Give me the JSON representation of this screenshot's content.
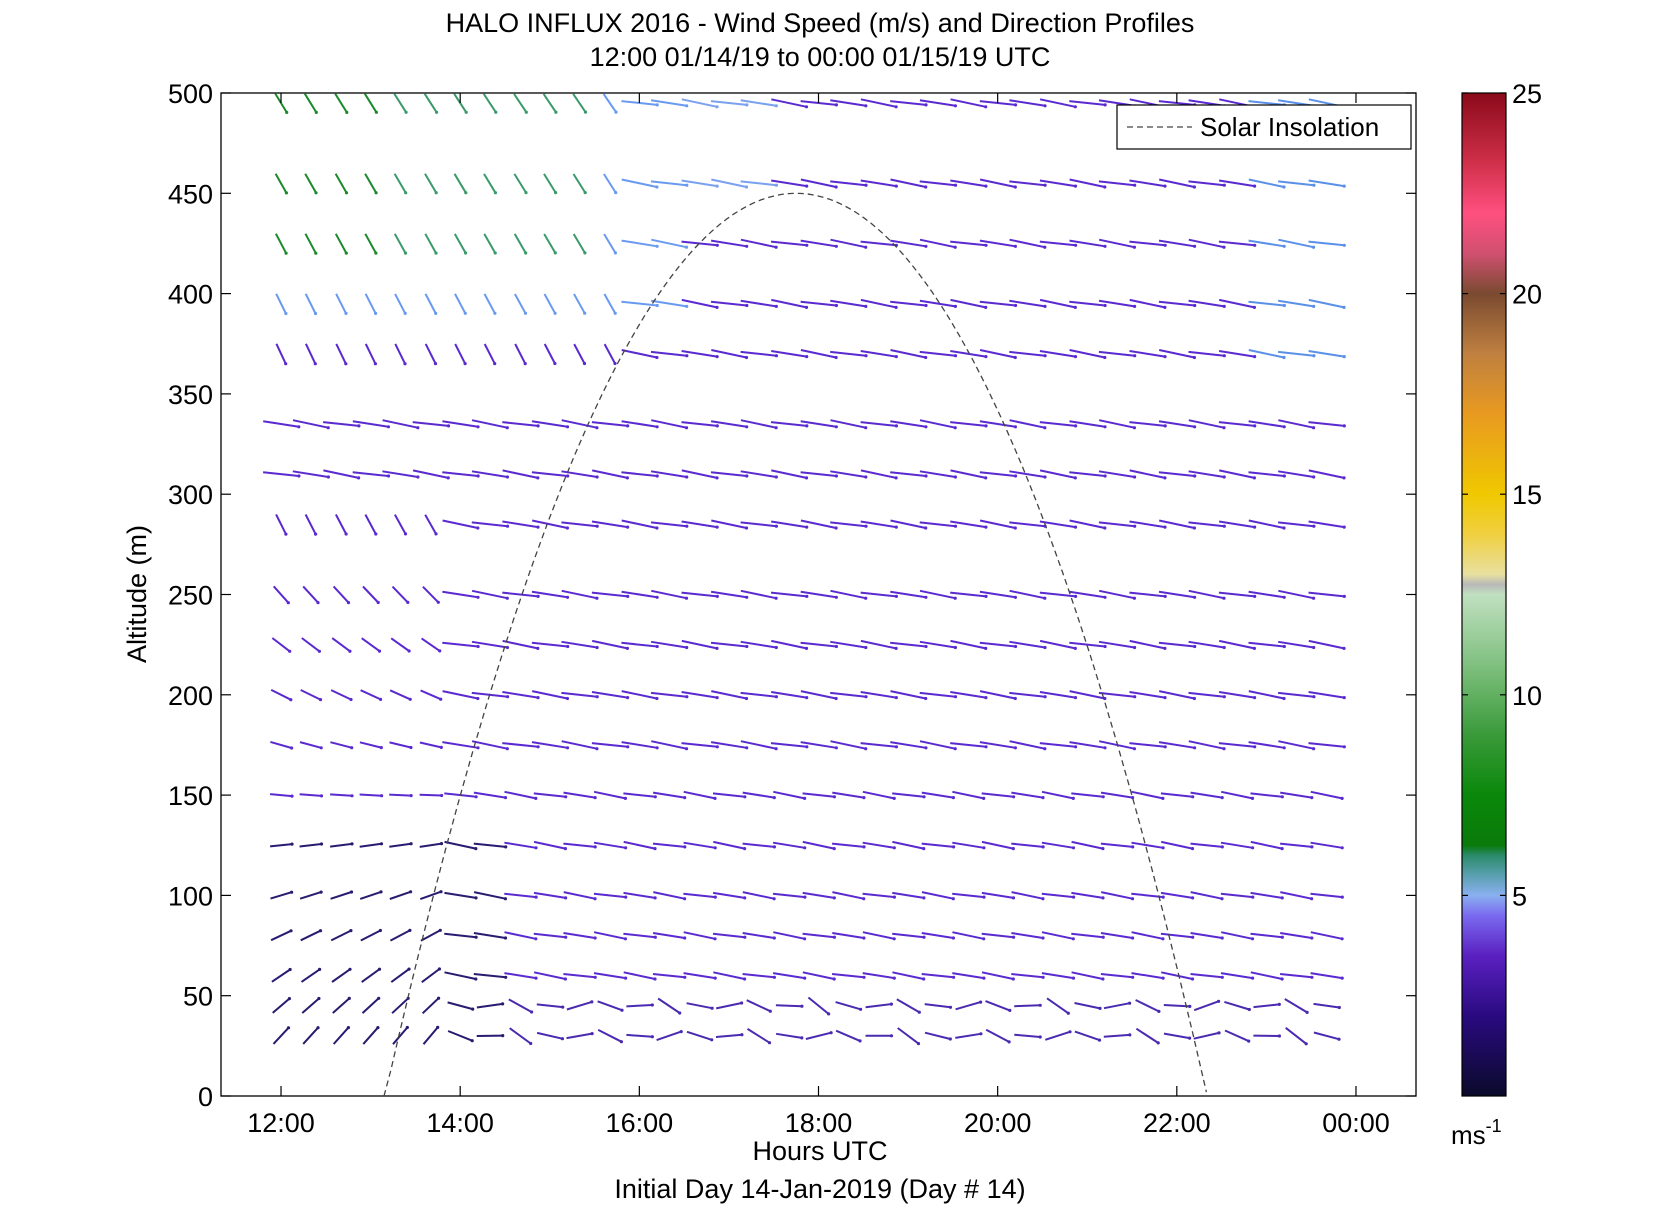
{
  "chart_data": {
    "type": "quiver",
    "title_line1": "HALO INFLUX 2016 - Wind Speed (m/s) and Direction Profiles",
    "title_line2": "12:00 01/14/19 to 00:00 01/15/19  UTC",
    "xlabel": "Hours UTC",
    "xlabel2": "Initial Day 14-Jan-2019 (Day # 14)",
    "ylabel": "Altitude (m)",
    "x_ticks": [
      "12:00",
      "14:00",
      "16:00",
      "18:00",
      "20:00",
      "22:00",
      "00:00"
    ],
    "x_range_hours": [
      11.33,
      24.67
    ],
    "y_ticks": [
      0,
      50,
      100,
      150,
      200,
      250,
      300,
      350,
      400,
      450,
      500
    ],
    "y_range": [
      0,
      500
    ],
    "legend": {
      "label": "Solar Insolation",
      "placement": "top-right"
    },
    "colorbar": {
      "ticks": [
        5,
        10,
        15,
        20,
        25
      ],
      "range": [
        0,
        25
      ],
      "unit_base": "ms",
      "unit_exp": "-1"
    },
    "wind_times_hours": [
      12.0,
      12.33,
      12.67,
      13.0,
      13.33,
      13.67,
      14.0,
      14.33,
      14.67,
      15.0,
      15.33,
      15.67,
      16.0,
      16.33,
      16.67,
      17.0,
      17.33,
      17.67,
      18.0,
      18.33,
      18.67,
      19.0,
      19.33,
      19.67,
      20.0,
      20.33,
      20.67,
      21.0,
      21.33,
      21.67,
      22.0,
      22.33,
      22.67,
      23.0,
      23.33,
      23.67
    ],
    "wind_altitudes_m": [
      30,
      45,
      60,
      80,
      100,
      125,
      150,
      175,
      200,
      225,
      250,
      285,
      310,
      335,
      370,
      395,
      425,
      455,
      495
    ],
    "solar_insolation": {
      "rise_hours": 13.15,
      "peak_hours": 17.75,
      "set_hours": 22.33,
      "peak_altitude": 450
    }
  }
}
